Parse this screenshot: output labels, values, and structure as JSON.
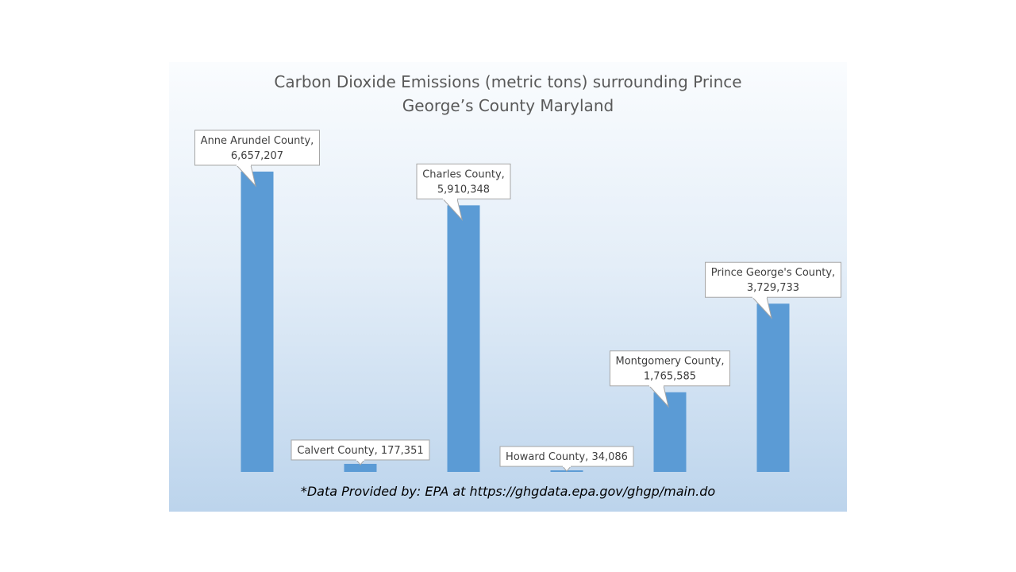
{
  "chart_data": {
    "type": "bar",
    "title_lines": [
      "Carbon Dioxide Emissions (metric tons) surrounding Prince",
      "George’s County Maryland"
    ],
    "categories": [
      "Anne Arundel County",
      "Calvert County",
      "Charles County",
      "Howard County",
      "Montgomery County",
      "Prince George's County"
    ],
    "values": [
      6657207,
      177351,
      5910348,
      34086,
      1765585,
      3729733
    ],
    "data_labels": [
      [
        "Anne Arundel County,",
        "6,657,207"
      ],
      [
        "Calvert County, 177,351"
      ],
      [
        "Charles County,",
        "5,910,348"
      ],
      [
        "Howard County, 34,086"
      ],
      [
        "Montgomery County,",
        "1,765,585"
      ],
      [
        "Prince George's County,",
        "3,729,733"
      ]
    ],
    "ylim": [
      0,
      6657207
    ],
    "grid": false,
    "legend": "none",
    "bar_color": "#5b9bd5",
    "footnote": "*Data Provided by: EPA at https://ghgdata.epa.gov/ghgp/main.do"
  }
}
